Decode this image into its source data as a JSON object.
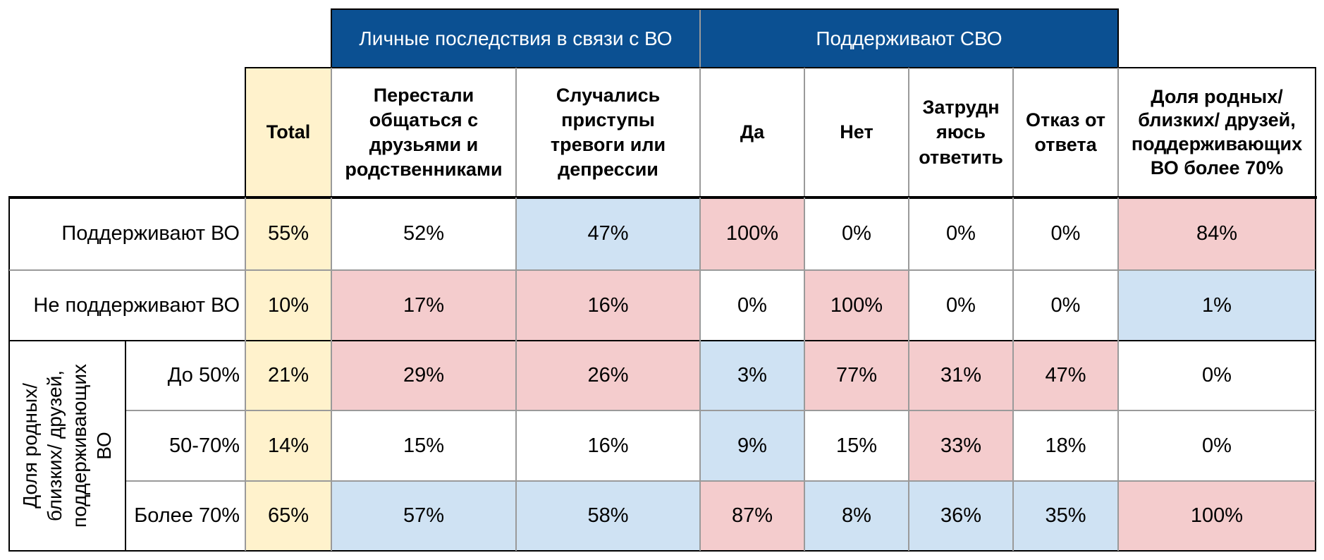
{
  "group_headers": {
    "personal": "Личные последствия в связи с ВО",
    "support_svo": "Поддерживают СВО"
  },
  "col_headers": {
    "total": "Total",
    "stopped_communicating": "Перестали общаться с друзьями и родственниками",
    "anxiety": "Случались приступы тревоги или депрессии",
    "yes": "Да",
    "no": "Нет",
    "hard_to_say": "Затрудн яюсь ответить",
    "refused": "Отказ от ответа",
    "share_relatives": "Доля родных/близких/ друзей, поддерживающих ВО более 70%"
  },
  "side_group_label": "Доля родных/ близких/ друзей, поддерживающих ВО",
  "rows": [
    {
      "label": "Поддерживают ВО",
      "total": "55%",
      "values": [
        "52%",
        "47%",
        "100%",
        "0%",
        "0%",
        "0%",
        "84%"
      ],
      "shades": [
        "",
        "blue",
        "pink",
        "",
        "",
        "",
        "pink"
      ]
    },
    {
      "label": "Не поддерживают ВО",
      "total": "10%",
      "values": [
        "17%",
        "16%",
        "0%",
        "100%",
        "0%",
        "0%",
        "1%"
      ],
      "shades": [
        "pink",
        "pink",
        "",
        "pink",
        "",
        "",
        "blue"
      ]
    },
    {
      "label": "До 50%",
      "total": "21%",
      "values": [
        "29%",
        "26%",
        "3%",
        "77%",
        "31%",
        "47%",
        "0%"
      ],
      "shades": [
        "pink",
        "pink",
        "blue",
        "pink",
        "pink",
        "pink",
        ""
      ]
    },
    {
      "label": "50-70%",
      "total": "14%",
      "values": [
        "15%",
        "16%",
        "9%",
        "15%",
        "33%",
        "18%",
        "0%"
      ],
      "shades": [
        "",
        "",
        "blue",
        "",
        "pink",
        "",
        ""
      ]
    },
    {
      "label": "Более 70%",
      "total": "65%",
      "values": [
        "57%",
        "58%",
        "87%",
        "8%",
        "36%",
        "35%",
        "100%"
      ],
      "shades": [
        "blue",
        "blue",
        "pink",
        "blue",
        "blue",
        "blue",
        "pink"
      ]
    }
  ],
  "colors": {
    "header_blue": "#0b5092",
    "pink": "#f4cccd",
    "blue": "#cfe2f3",
    "total": "#fff2cc"
  }
}
